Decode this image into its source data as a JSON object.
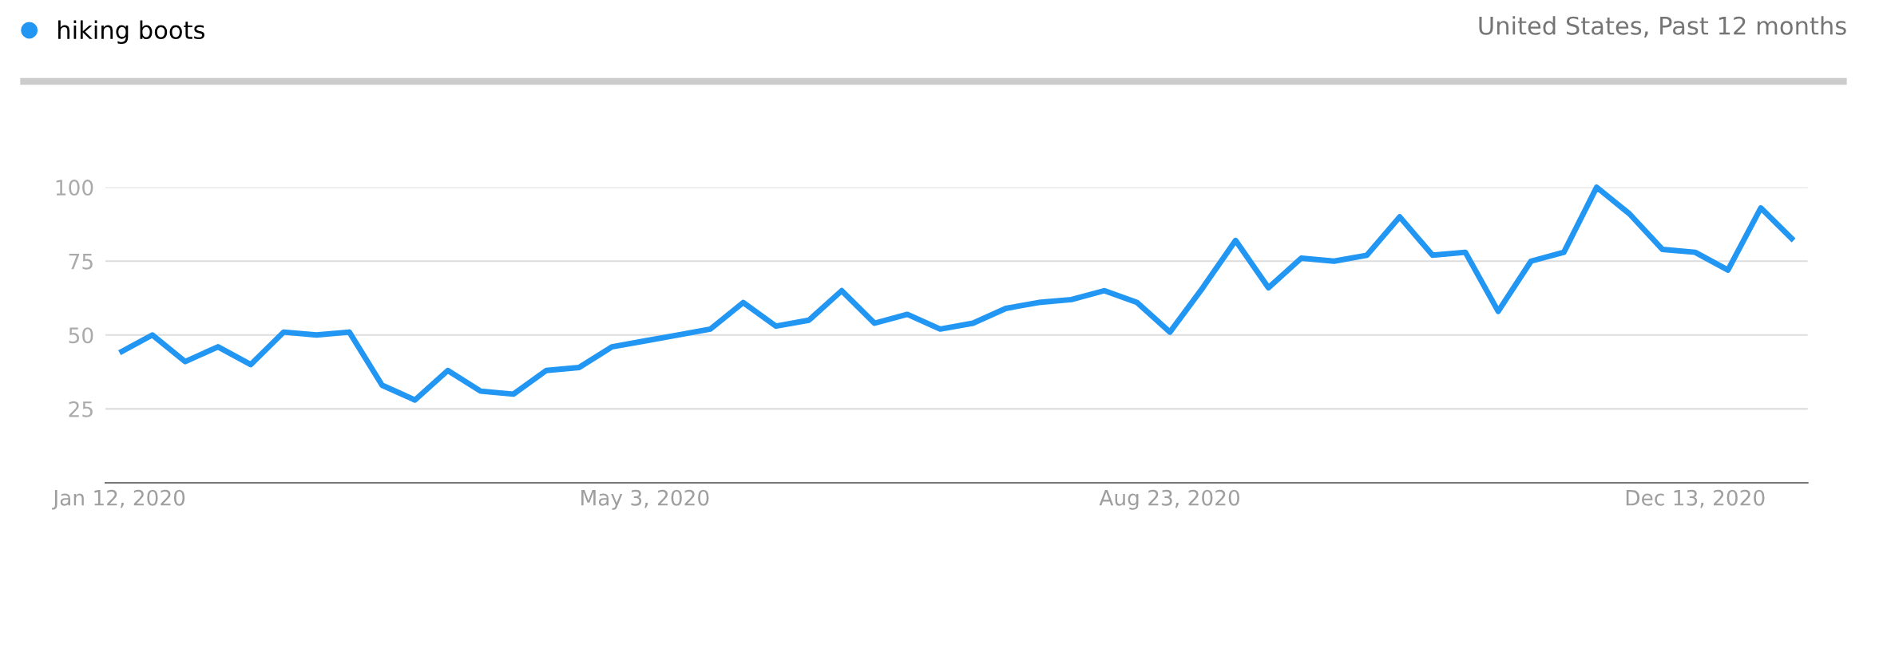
{
  "chart_data": {
    "type": "line",
    "subtitle": "United States, Past 12 months",
    "x": [
      "2020-01-12",
      "2020-01-19",
      "2020-01-26",
      "2020-02-02",
      "2020-02-09",
      "2020-02-16",
      "2020-02-23",
      "2020-03-01",
      "2020-03-08",
      "2020-03-15",
      "2020-03-22",
      "2020-03-29",
      "2020-04-05",
      "2020-04-12",
      "2020-04-19",
      "2020-04-26",
      "2020-05-03",
      "2020-05-10",
      "2020-05-17",
      "2020-05-24",
      "2020-05-31",
      "2020-06-07",
      "2020-06-14",
      "2020-06-21",
      "2020-06-28",
      "2020-07-05",
      "2020-07-12",
      "2020-07-19",
      "2020-07-26",
      "2020-08-02",
      "2020-08-09",
      "2020-08-16",
      "2020-08-23",
      "2020-08-30",
      "2020-09-06",
      "2020-09-13",
      "2020-09-20",
      "2020-09-27",
      "2020-10-04",
      "2020-10-11",
      "2020-10-18",
      "2020-10-25",
      "2020-11-01",
      "2020-11-08",
      "2020-11-15",
      "2020-11-22",
      "2020-11-29",
      "2020-12-06",
      "2020-12-13",
      "2020-12-20",
      "2020-12-27",
      "2021-01-03"
    ],
    "series": [
      {
        "name": "hiking boots",
        "color": "#2196f3",
        "values": [
          44,
          50,
          41,
          46,
          40,
          51,
          50,
          51,
          33,
          28,
          38,
          31,
          30,
          38,
          39,
          46,
          48,
          50,
          52,
          61,
          53,
          55,
          65,
          54,
          57,
          52,
          54,
          59,
          61,
          62,
          65,
          61,
          51,
          66,
          82,
          66,
          76,
          75,
          77,
          90,
          77,
          78,
          58,
          75,
          78,
          100,
          91,
          79,
          78,
          72,
          93,
          82
        ]
      }
    ],
    "xlim": [
      "2020-01-09",
      "2021-01-06"
    ],
    "xticks": [
      {
        "value": "2020-01-12",
        "label": "Jan 12, 2020"
      },
      {
        "value": "2020-05-03",
        "label": "May 3, 2020"
      },
      {
        "value": "2020-08-23",
        "label": "Aug 23, 2020"
      },
      {
        "value": "2020-12-13",
        "label": "Dec 13, 2020"
      }
    ],
    "ylim": [
      0,
      100
    ],
    "yticks": [
      25,
      50,
      75,
      100
    ],
    "grid": "y",
    "legend": "top left",
    "marker": "none",
    "line_style": "solid"
  }
}
